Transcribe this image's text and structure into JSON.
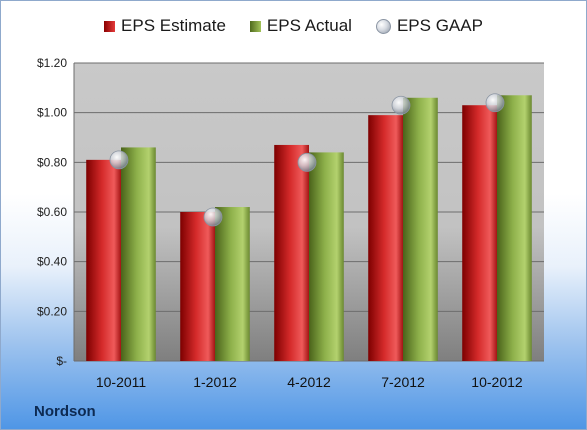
{
  "company": "Nordson",
  "legend": {
    "estimate": "EPS Estimate",
    "actual": "EPS Actual",
    "gaap": "EPS GAAP"
  },
  "colors": {
    "estimate": "#d42a2a",
    "actual": "#8db04a",
    "gaap": "#c8ccd4"
  },
  "chart_data": {
    "type": "bar",
    "categories": [
      "10-2011",
      "1-2012",
      "4-2012",
      "7-2012",
      "10-2012"
    ],
    "series": [
      {
        "name": "EPS Estimate",
        "type": "bar",
        "values": [
          0.81,
          0.6,
          0.87,
          0.99,
          1.03
        ]
      },
      {
        "name": "EPS Actual",
        "type": "bar",
        "values": [
          0.86,
          0.62,
          0.84,
          1.06,
          1.07
        ]
      },
      {
        "name": "EPS GAAP",
        "type": "scatter",
        "values": [
          0.81,
          0.58,
          0.8,
          1.03,
          1.04
        ]
      }
    ],
    "ylim": [
      0,
      1.2
    ],
    "yticks": [
      0,
      0.2,
      0.4,
      0.6,
      0.8,
      1.0,
      1.2
    ],
    "ytick_labels": [
      "$-",
      "$0.20",
      "$0.40",
      "$0.60",
      "$0.80",
      "$1.00",
      "$1.20"
    ],
    "grid": true,
    "legend_position": "top"
  }
}
